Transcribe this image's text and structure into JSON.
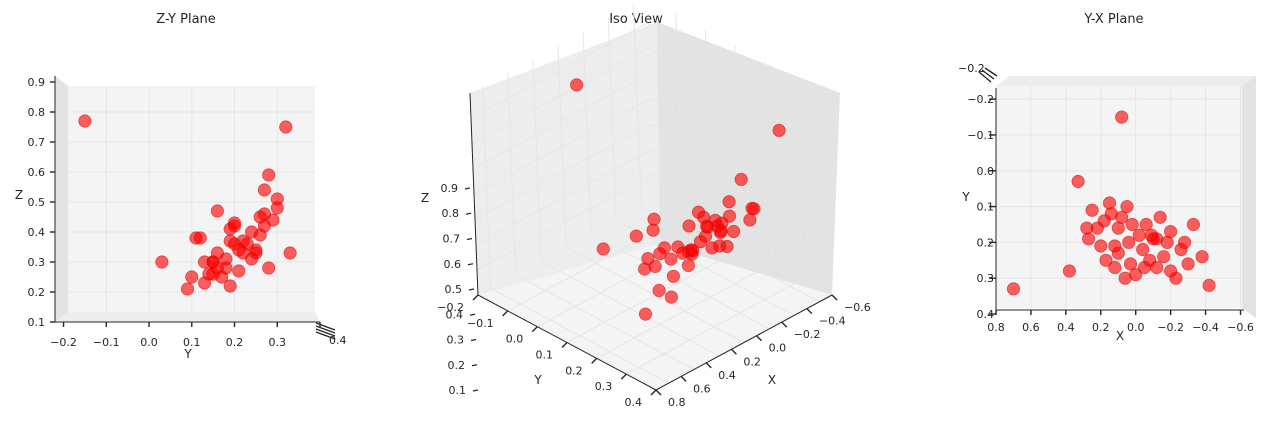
{
  "chart_data": [
    {
      "type": "scatter",
      "title": "Z-Y Plane",
      "view": "y-z",
      "xlabel": "Y",
      "ylabel": "Z",
      "xlim": [
        -0.22,
        0.4
      ],
      "ylim": [
        0.1,
        0.9
      ],
      "xticks": [
        "−0.2",
        "−0.1",
        "0.0",
        "0.1",
        "0.2",
        "0.3",
        "0.4"
      ],
      "yticks": [
        "0.1",
        "0.2",
        "0.3",
        "0.4",
        "0.5",
        "0.6",
        "0.7",
        "0.8",
        "0.9"
      ],
      "marker_color": "#ff0000"
    },
    {
      "type": "scatter",
      "title": "Iso View",
      "view": "iso",
      "xlabel": "X",
      "ylabel": "Y",
      "zlabel": "Z",
      "xticks": [
        "−0.6",
        "−0.4",
        "−0.2",
        "0.0",
        "0.2",
        "0.4",
        "0.6",
        "0.8"
      ],
      "yticks": [
        "−0.2",
        "−0.1",
        "0.0",
        "0.1",
        "0.2",
        "0.3",
        "0.4"
      ],
      "zticks": [
        "0.1",
        "0.2",
        "0.3",
        "0.4",
        "0.5",
        "0.6",
        "0.7",
        "0.8",
        "0.9"
      ],
      "marker_color": "#ff0000"
    },
    {
      "type": "scatter",
      "title": "Y-X Plane",
      "view": "x-y",
      "xlabel": "X",
      "ylabel": "Y",
      "xlim": [
        0.8,
        -0.62
      ],
      "ylim": [
        0.4,
        -0.22
      ],
      "xticks": [
        "0.8",
        "0.6",
        "0.4",
        "0.2",
        "0.0",
        "−0.2",
        "−0.4",
        "−0.6"
      ],
      "yticks": [
        "−0.2",
        "−0.1",
        "0.0",
        "0.1",
        "0.2",
        "0.3",
        "0.4"
      ],
      "marker_color": "#ff0000"
    }
  ],
  "points": [
    {
      "x": 0.08,
      "y": -0.15,
      "z": 0.77
    },
    {
      "x": -0.42,
      "y": 0.32,
      "z": 0.75
    },
    {
      "x": 0.7,
      "y": 0.33,
      "z": 0.33
    },
    {
      "x": 0.38,
      "y": 0.28,
      "z": 0.28
    },
    {
      "x": 0.33,
      "y": 0.03,
      "z": 0.3
    },
    {
      "x": 0.27,
      "y": 0.19,
      "z": 0.22
    },
    {
      "x": 0.25,
      "y": 0.11,
      "z": 0.38
    },
    {
      "x": 0.22,
      "y": 0.16,
      "z": 0.47
    },
    {
      "x": 0.2,
      "y": 0.21,
      "z": 0.27
    },
    {
      "x": 0.17,
      "y": 0.25,
      "z": 0.33
    },
    {
      "x": 0.15,
      "y": 0.09,
      "z": 0.21
    },
    {
      "x": 0.14,
      "y": 0.12,
      "z": 0.38
    },
    {
      "x": 0.12,
      "y": 0.27,
      "z": 0.54
    },
    {
      "x": 0.1,
      "y": 0.23,
      "z": 0.36
    },
    {
      "x": 0.08,
      "y": 0.13,
      "z": 0.3
    },
    {
      "x": 0.06,
      "y": 0.3,
      "z": 0.51
    },
    {
      "x": 0.04,
      "y": 0.2,
      "z": 0.42
    },
    {
      "x": 0.02,
      "y": 0.15,
      "z": 0.3
    },
    {
      "x": 0.0,
      "y": 0.29,
      "z": 0.44
    },
    {
      "x": -0.02,
      "y": 0.18,
      "z": 0.28
    },
    {
      "x": -0.04,
      "y": 0.22,
      "z": 0.37
    },
    {
      "x": -0.06,
      "y": 0.15,
      "z": 0.26
    },
    {
      "x": -0.08,
      "y": 0.25,
      "z": 0.34
    },
    {
      "x": -0.1,
      "y": 0.19,
      "z": 0.41
    },
    {
      "x": -0.12,
      "y": 0.27,
      "z": 0.46
    },
    {
      "x": -0.14,
      "y": 0.13,
      "z": 0.23
    },
    {
      "x": -0.16,
      "y": 0.24,
      "z": 0.31
    },
    {
      "x": -0.18,
      "y": 0.2,
      "z": 0.36
    },
    {
      "x": -0.2,
      "y": 0.17,
      "z": 0.25
    },
    {
      "x": -0.23,
      "y": 0.3,
      "z": 0.48
    },
    {
      "x": -0.26,
      "y": 0.22,
      "z": 0.33
    },
    {
      "x": -0.3,
      "y": 0.26,
      "z": 0.39
    },
    {
      "x": -0.33,
      "y": 0.15,
      "z": 0.3
    },
    {
      "x": 0.05,
      "y": 0.1,
      "z": 0.25
    },
    {
      "x": 0.1,
      "y": 0.16,
      "z": 0.28
    },
    {
      "x": -0.05,
      "y": 0.27,
      "z": 0.42
    },
    {
      "x": -0.12,
      "y": 0.19,
      "z": 0.37
    },
    {
      "x": 0.18,
      "y": 0.14,
      "z": 0.26
    },
    {
      "x": -0.2,
      "y": 0.28,
      "z": 0.59
    },
    {
      "x": -0.28,
      "y": 0.2,
      "z": 0.43
    },
    {
      "x": 0.12,
      "y": 0.21,
      "z": 0.34
    },
    {
      "x": -0.09,
      "y": 0.18,
      "z": 0.31
    },
    {
      "x": 0.03,
      "y": 0.26,
      "z": 0.45
    },
    {
      "x": -0.38,
      "y": 0.24,
      "z": 0.4
    },
    {
      "x": 0.28,
      "y": 0.16,
      "z": 0.33
    }
  ]
}
